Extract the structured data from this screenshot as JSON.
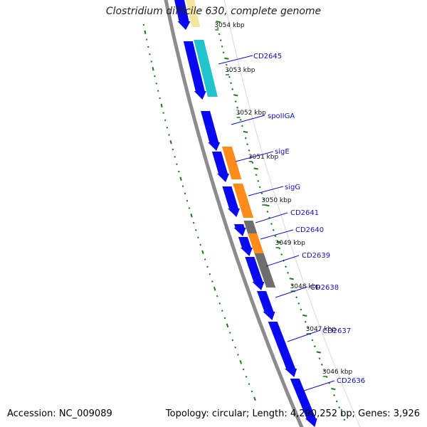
{
  "title": "Clostridium difficile 630, complete genome",
  "accession": "Accession: NC_009089",
  "summary": "Topology: circular; Length: 4,290,252 bp; Genes: 3,926",
  "colors": {
    "backbone": "#8c8c8c",
    "ticks": "#1a7a1a",
    "label": "#1010c0",
    "strand_cds": "#0a0af0",
    "cyan": "#22c4cc",
    "orange": "#ff8c1a",
    "gray": "#6e6e6e",
    "yellow": "#f2e6a0"
  },
  "kbp_marks": [
    {
      "text": "3054 kbp"
    },
    {
      "text": "3053 kbp"
    },
    {
      "text": "3052 kbp"
    },
    {
      "text": "3051 kbp"
    },
    {
      "text": "3050 kbp"
    },
    {
      "text": "3049 kbp"
    },
    {
      "text": "3048 kbp"
    },
    {
      "text": "3047 kbp"
    },
    {
      "text": "3046 kbp"
    }
  ],
  "gene_labels": [
    {
      "text": "CD2645"
    },
    {
      "text": "spoIIGA"
    },
    {
      "text": "sigE"
    },
    {
      "text": "sigG"
    },
    {
      "text": "CD2641"
    },
    {
      "text": "CD2640"
    },
    {
      "text": "CD2639"
    },
    {
      "text": "CD2638"
    },
    {
      "text": "CD2637"
    },
    {
      "text": "CD2636"
    }
  ]
}
